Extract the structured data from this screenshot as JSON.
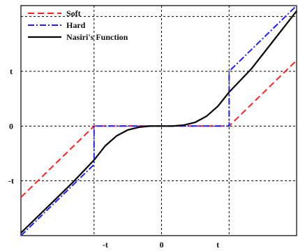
{
  "chart_data": {
    "type": "line",
    "title": "",
    "xlabel": "",
    "ylabel": "",
    "t": 1,
    "xlim": [
      -2.5,
      2.4
    ],
    "ylim": [
      -2,
      2.2
    ],
    "grid": true,
    "x_ticks": [
      {
        "value": -1,
        "label": "-t"
      },
      {
        "value": 0,
        "label": "0"
      },
      {
        "value": 1,
        "label": "t"
      }
    ],
    "y_ticks": [
      {
        "value": 1,
        "label": "t"
      },
      {
        "value": 0,
        "label": "0"
      },
      {
        "value": -1,
        "label": "-t"
      }
    ],
    "grid_y_values": [
      2.0,
      1.0,
      0.0,
      -1.0,
      -2.0
    ],
    "grid_x_values": [
      -1.2,
      0,
      1.2
    ],
    "legend_position": "top-left",
    "series": [
      {
        "name": "Soft",
        "color": "#ff2020",
        "style": "dashed",
        "x": [
          -2.5,
          -1.2,
          1.2,
          2.4
        ],
        "y": [
          -1.3,
          0,
          0,
          1.2
        ]
      },
      {
        "name": "Hard",
        "color": "#1f1fff",
        "style": "dashdot",
        "x": [
          -2.5,
          -1.2,
          -1.2,
          1.2,
          1.2,
          2.4
        ],
        "y": [
          -2.0,
          -0.7,
          0,
          0,
          1.0,
          2.2
        ]
      },
      {
        "name": "Nasiri's Function",
        "color": "#000000",
        "style": "solid",
        "x": [
          -2.5,
          -1.6,
          -1.2,
          -1.0,
          -0.8,
          -0.6,
          -0.4,
          -0.2,
          0,
          0.2,
          0.4,
          0.6,
          0.8,
          1.0,
          1.2,
          1.6,
          2.4
        ],
        "y": [
          -1.95,
          -1.05,
          -0.62,
          -0.36,
          -0.18,
          -0.07,
          -0.02,
          0,
          0,
          0,
          0.02,
          0.07,
          0.18,
          0.36,
          0.62,
          1.05,
          2.1
        ]
      }
    ]
  }
}
